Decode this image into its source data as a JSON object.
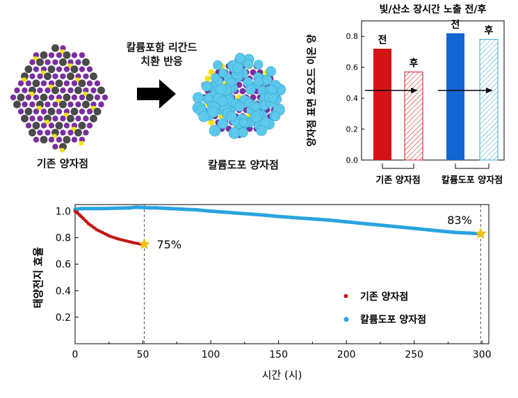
{
  "schematic": {
    "caption_left": "기존 양자점",
    "caption_right": "칼륨도포 양자점",
    "process_text_line1": "칼륨포함 리간드",
    "process_text_line2": "치환 반응",
    "colors": {
      "purple": "#7a2fa0",
      "gray": "#4a4a4a",
      "yellow": "#f2e400",
      "cyan": "#5bc8ec"
    }
  },
  "chart_data": [
    {
      "type": "bar",
      "title": "빛/산소 장시간 노출 전/후",
      "ylabel": "양자점 표면 요오드 이온 양",
      "ylim": [
        0,
        0.9
      ],
      "yticks": [
        "0.0",
        "0.2",
        "0.4",
        "0.6",
        "0.8"
      ],
      "groups": [
        "기존 양자점",
        "칼륨도포 양자점"
      ],
      "bars": [
        {
          "group": "기존 양자점",
          "label": "전",
          "value": 0.72,
          "fill": "solid",
          "color": "#d41414"
        },
        {
          "group": "기존 양자점",
          "label": "후",
          "value": 0.57,
          "fill": "hatched",
          "color": "#d41414"
        },
        {
          "group": "칼륨도포 양자점",
          "label": "전",
          "value": 0.82,
          "fill": "solid",
          "color": "#1466d4"
        },
        {
          "group": "칼륨도포 양자점",
          "label": "후",
          "value": 0.78,
          "fill": "hatched",
          "color": "#39a8c8"
        }
      ]
    },
    {
      "type": "scatter",
      "xlabel": "시간 (시)",
      "ylabel": "태양전지 효율",
      "xlim": [
        0,
        305
      ],
      "ylim": [
        0,
        1.05
      ],
      "xticks": [
        "0",
        "50",
        "100",
        "150",
        "200",
        "250",
        "300"
      ],
      "yticks": [
        "0.2",
        "0.4",
        "0.6",
        "0.8",
        "1.0"
      ],
      "series": [
        {
          "name": "기존 양자점",
          "color": "#c21414",
          "x": [
            0,
            1,
            2,
            3,
            4,
            5,
            6,
            8,
            10,
            12,
            14,
            16,
            18,
            20,
            22,
            24,
            26,
            28,
            30,
            32,
            34,
            36,
            38,
            40,
            42,
            44,
            46,
            48,
            50,
            51
          ],
          "y": [
            1.0,
            0.99,
            0.985,
            0.975,
            0.965,
            0.955,
            0.945,
            0.925,
            0.905,
            0.89,
            0.875,
            0.86,
            0.85,
            0.84,
            0.83,
            0.82,
            0.81,
            0.803,
            0.797,
            0.79,
            0.785,
            0.78,
            0.775,
            0.77,
            0.765,
            0.76,
            0.757,
            0.753,
            0.75,
            0.75
          ]
        },
        {
          "name": "칼륨도포 양자점",
          "color": "#2aa3e0",
          "x": [
            0,
            5,
            10,
            20,
            30,
            40,
            45,
            50,
            55,
            60,
            70,
            80,
            90,
            100,
            110,
            120,
            130,
            140,
            150,
            160,
            170,
            180,
            190,
            200,
            210,
            220,
            230,
            240,
            250,
            260,
            270,
            275,
            280,
            290,
            300
          ],
          "y": [
            1.015,
            1.02,
            1.02,
            1.02,
            1.022,
            1.025,
            1.03,
            1.028,
            1.025,
            1.025,
            1.02,
            1.015,
            1.01,
            1.0,
            0.993,
            0.985,
            0.978,
            0.97,
            0.96,
            0.953,
            0.945,
            0.938,
            0.93,
            0.92,
            0.91,
            0.9,
            0.89,
            0.88,
            0.87,
            0.86,
            0.85,
            0.845,
            0.84,
            0.835,
            0.83
          ]
        }
      ],
      "annotations": [
        {
          "text": "75%",
          "x": 51,
          "y": 0.75
        },
        {
          "text": "83%",
          "x": 299,
          "y": 0.83
        }
      ],
      "markers": [
        {
          "x": 51,
          "y": 0.75,
          "shape": "star",
          "color": "#f5c400"
        },
        {
          "x": 299,
          "y": 0.83,
          "shape": "star",
          "color": "#f5c400"
        }
      ],
      "vlines": [
        51,
        299
      ],
      "legend_placement": "bottom-right"
    }
  ]
}
